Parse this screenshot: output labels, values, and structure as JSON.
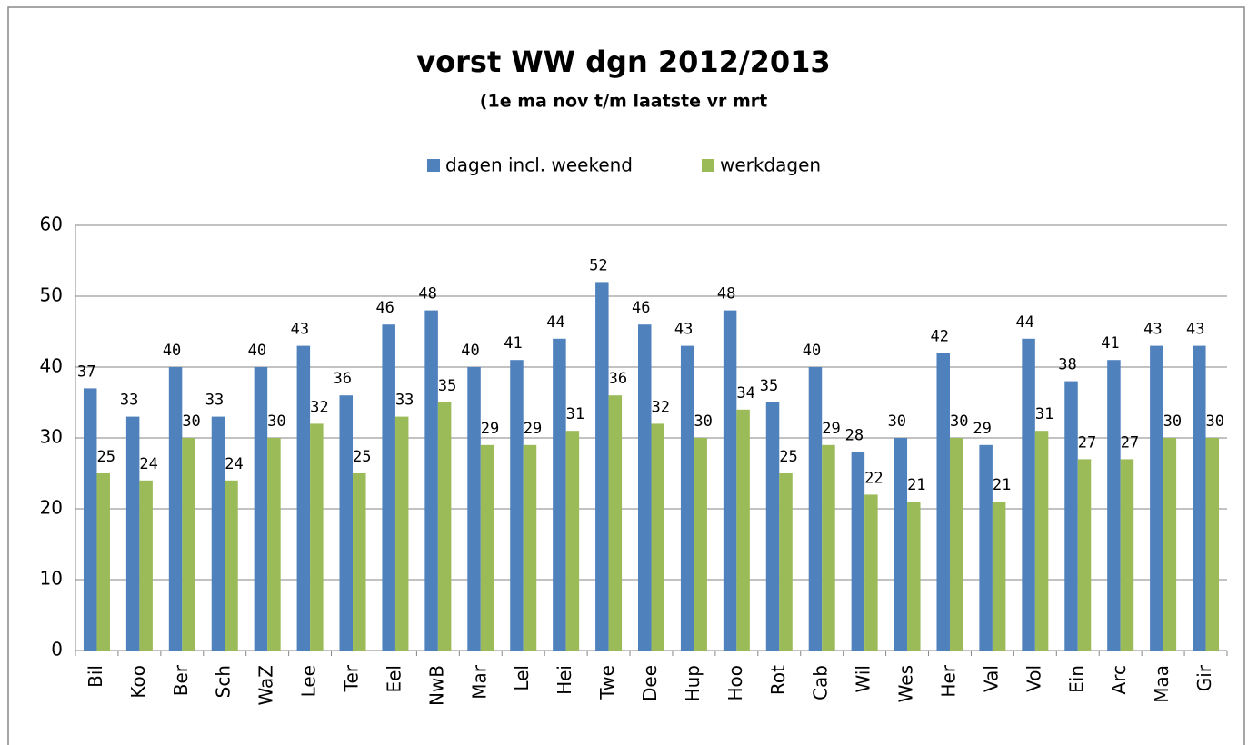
{
  "chart_data": {
    "type": "bar",
    "title": "vorst WW dgn 2012/2013",
    "subtitle": "(1e ma nov t/m laatste vr mrt",
    "categories": [
      "Bil",
      "Koo",
      "Ber",
      "Sch",
      "WaZ",
      "Lee",
      "Ter",
      "Eel",
      "NwB",
      "Mar",
      "Lel",
      "Hei",
      "Twe",
      "Dee",
      "Hup",
      "Hoo",
      "Rot",
      "Cab",
      "Wil",
      "Wes",
      "Her",
      "Val",
      "Vol",
      "Ein",
      "Arc",
      "Maa",
      "Gir"
    ],
    "series": [
      {
        "name": "dagen incl. weekend",
        "color": "#4f81bd",
        "values": [
          37,
          33,
          40,
          33,
          40,
          43,
          36,
          46,
          48,
          40,
          41,
          44,
          52,
          46,
          43,
          48,
          35,
          40,
          28,
          30,
          42,
          29,
          44,
          38,
          41,
          43,
          43
        ]
      },
      {
        "name": "werkdagen",
        "color": "#9bbb59",
        "values": [
          25,
          24,
          30,
          24,
          30,
          32,
          25,
          33,
          35,
          29,
          29,
          31,
          36,
          32,
          30,
          34,
          25,
          29,
          22,
          21,
          30,
          21,
          31,
          27,
          27,
          30,
          30
        ]
      }
    ],
    "ylim": [
      0,
      60
    ],
    "yticks": [
      0,
      10,
      20,
      30,
      40,
      50,
      60
    ],
    "grid": true,
    "legend": "top"
  }
}
